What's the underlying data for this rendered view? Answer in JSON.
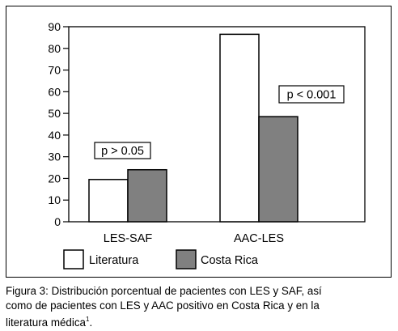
{
  "chart_data": {
    "type": "bar",
    "categories": [
      "LES-SAF",
      "AAC-LES"
    ],
    "series": [
      {
        "name": "Literatura",
        "values": [
          19.5,
          86.5
        ],
        "color": "#ffffff"
      },
      {
        "name": "Costa Rica",
        "values": [
          24,
          48.5
        ],
        "color": "#808080"
      }
    ],
    "ylim": [
      0,
      90
    ],
    "yticks": [
      0,
      10,
      20,
      30,
      40,
      50,
      60,
      70,
      80,
      90
    ],
    "xlabel": "",
    "ylabel": "",
    "grid": false,
    "legend_position": "bottom",
    "annotations": [
      {
        "category": "LES-SAF",
        "text": "p > 0.05"
      },
      {
        "category": "AAC-LES",
        "text": "p < 0.001"
      }
    ]
  },
  "caption": {
    "lines": [
      "Figura 3: Distribución porcentual de pacientes con LES y SAF, así",
      "como de pacientes con LES y AAC positivo en Costa Rica y en la",
      "literatura médica"
    ],
    "superscript": "1",
    "end": "."
  }
}
